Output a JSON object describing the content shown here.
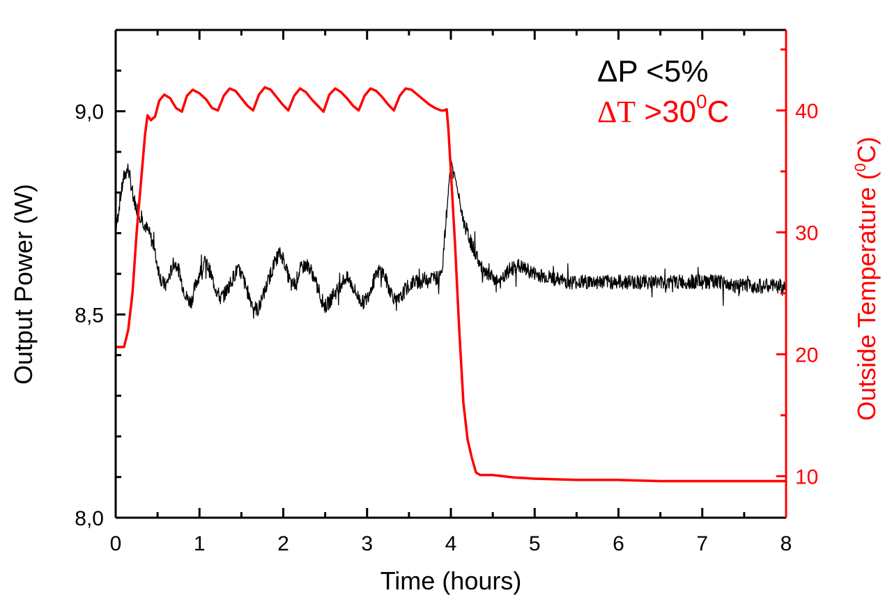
{
  "chart_data": {
    "type": "line",
    "title": "",
    "xlabel": "Time (hours)",
    "ylabel_left": "Output Power (W)",
    "ylabel_right": "Outside Temperature (⁰C)",
    "ylabel_right_parts": {
      "pre": "Outside Temperature (",
      "sup": "0",
      "post": "C)"
    },
    "xlim": [
      0,
      8
    ],
    "ylim_left": [
      8.0,
      9.2
    ],
    "ylim_right": [
      6.6,
      46.6
    ],
    "x_ticks": [
      "0",
      "1",
      "2",
      "3",
      "4",
      "5",
      "6",
      "7",
      "8"
    ],
    "x_tick_values": [
      0,
      1,
      2,
      3,
      4,
      5,
      6,
      7,
      8
    ],
    "y_left_ticks": [
      "8,0",
      "8,5",
      "9,0"
    ],
    "y_left_tick_values": [
      8.0,
      8.5,
      9.0
    ],
    "y_right_ticks": [
      "10",
      "20",
      "30",
      "40"
    ],
    "y_right_tick_values": [
      10,
      20,
      30,
      40
    ],
    "grid": false,
    "annotations": [
      {
        "text": "ΔP <5%",
        "color": "#000000"
      },
      {
        "text_parts": {
          "delta": "ΔT",
          "pre": " >30",
          "sup": "0",
          "post": "C"
        },
        "text": "ΔT >30⁰C",
        "color": "#ff0000"
      }
    ],
    "series": [
      {
        "name": "Output Power",
        "axis": "left",
        "color": "#000000",
        "x": [
          0.0,
          0.05,
          0.1,
          0.15,
          0.2,
          0.25,
          0.3,
          0.35,
          0.4,
          0.45,
          0.5,
          0.55,
          0.6,
          0.65,
          0.7,
          0.75,
          0.8,
          0.85,
          0.9,
          0.95,
          1.0,
          1.05,
          1.1,
          1.15,
          1.2,
          1.25,
          1.3,
          1.35,
          1.4,
          1.45,
          1.5,
          1.55,
          1.6,
          1.65,
          1.7,
          1.75,
          1.8,
          1.85,
          1.9,
          1.95,
          2.0,
          2.05,
          2.1,
          2.15,
          2.2,
          2.25,
          2.3,
          2.35,
          2.4,
          2.45,
          2.5,
          2.55,
          2.6,
          2.65,
          2.7,
          2.75,
          2.8,
          2.85,
          2.9,
          2.95,
          3.0,
          3.05,
          3.1,
          3.15,
          3.2,
          3.25,
          3.3,
          3.35,
          3.4,
          3.45,
          3.5,
          3.55,
          3.6,
          3.65,
          3.7,
          3.75,
          3.8,
          3.85,
          3.9,
          3.95,
          4.0,
          4.05,
          4.1,
          4.15,
          4.2,
          4.25,
          4.3,
          4.35,
          4.4,
          4.5,
          4.6,
          4.7,
          4.8,
          4.9,
          5.0,
          5.2,
          5.4,
          5.6,
          5.8,
          6.0,
          6.2,
          6.4,
          6.6,
          6.8,
          7.0,
          7.2,
          7.4,
          7.6,
          7.8,
          8.0
        ],
        "values": [
          8.7,
          8.78,
          8.84,
          8.86,
          8.8,
          8.76,
          8.74,
          8.72,
          8.7,
          8.67,
          8.62,
          8.58,
          8.57,
          8.6,
          8.63,
          8.61,
          8.57,
          8.54,
          8.53,
          8.57,
          8.6,
          8.63,
          8.62,
          8.59,
          8.56,
          8.54,
          8.55,
          8.57,
          8.59,
          8.61,
          8.6,
          8.57,
          8.54,
          8.52,
          8.51,
          8.54,
          8.57,
          8.6,
          8.63,
          8.65,
          8.64,
          8.6,
          8.57,
          8.58,
          8.61,
          8.62,
          8.62,
          8.6,
          8.57,
          8.54,
          8.52,
          8.53,
          8.55,
          8.56,
          8.58,
          8.59,
          8.58,
          8.56,
          8.54,
          8.53,
          8.54,
          8.57,
          8.59,
          8.61,
          8.6,
          8.57,
          8.55,
          8.53,
          8.54,
          8.56,
          8.57,
          8.58,
          8.58,
          8.58,
          8.59,
          8.59,
          8.59,
          8.59,
          8.62,
          8.75,
          8.88,
          8.84,
          8.78,
          8.73,
          8.7,
          8.67,
          8.65,
          8.62,
          8.6,
          8.59,
          8.58,
          8.61,
          8.62,
          8.61,
          8.6,
          8.59,
          8.58,
          8.58,
          8.58,
          8.58,
          8.58,
          8.58,
          8.58,
          8.58,
          8.58,
          8.58,
          8.57,
          8.57,
          8.57,
          8.57
        ]
      },
      {
        "name": "Outside Temperature",
        "axis": "right",
        "color": "#ff0000",
        "x": [
          0.0,
          0.1,
          0.15,
          0.2,
          0.25,
          0.3,
          0.35,
          0.38,
          0.42,
          0.47,
          0.52,
          0.58,
          0.65,
          0.72,
          0.79,
          0.85,
          0.92,
          1.0,
          1.08,
          1.15,
          1.22,
          1.29,
          1.36,
          1.43,
          1.5,
          1.57,
          1.64,
          1.71,
          1.78,
          1.85,
          1.92,
          1.99,
          2.06,
          2.13,
          2.2,
          2.27,
          2.34,
          2.41,
          2.48,
          2.55,
          2.62,
          2.69,
          2.76,
          2.83,
          2.9,
          2.97,
          3.04,
          3.11,
          3.18,
          3.25,
          3.32,
          3.39,
          3.46,
          3.53,
          3.6,
          3.67,
          3.74,
          3.81,
          3.88,
          3.92,
          3.95,
          3.97,
          4.0,
          4.05,
          4.1,
          4.15,
          4.2,
          4.25,
          4.3,
          4.35,
          4.5,
          4.75,
          5.0,
          5.5,
          6.0,
          6.5,
          7.0,
          7.5,
          8.0
        ],
        "values": [
          20.6,
          20.6,
          22,
          25,
          30,
          34,
          38,
          39.6,
          39.2,
          39.5,
          40.8,
          41.3,
          41.0,
          40.2,
          39.9,
          41.2,
          41.7,
          41.4,
          40.9,
          40.2,
          40.0,
          41.2,
          41.8,
          41.6,
          41.0,
          40.4,
          40.0,
          41.3,
          41.9,
          41.7,
          41.1,
          40.5,
          40.0,
          41.2,
          41.8,
          41.5,
          40.9,
          40.4,
          39.9,
          41.3,
          41.8,
          41.5,
          41.0,
          40.4,
          40.0,
          41.2,
          41.8,
          41.6,
          41.1,
          40.5,
          40.0,
          41.2,
          41.8,
          41.7,
          41.3,
          40.9,
          40.5,
          40.2,
          40.0,
          40.0,
          40.1,
          38.5,
          35,
          29,
          22,
          16,
          13,
          11.5,
          10.3,
          10.1,
          10.1,
          9.9,
          9.8,
          9.7,
          9.7,
          9.6,
          9.6,
          9.6,
          9.6
        ]
      }
    ]
  }
}
